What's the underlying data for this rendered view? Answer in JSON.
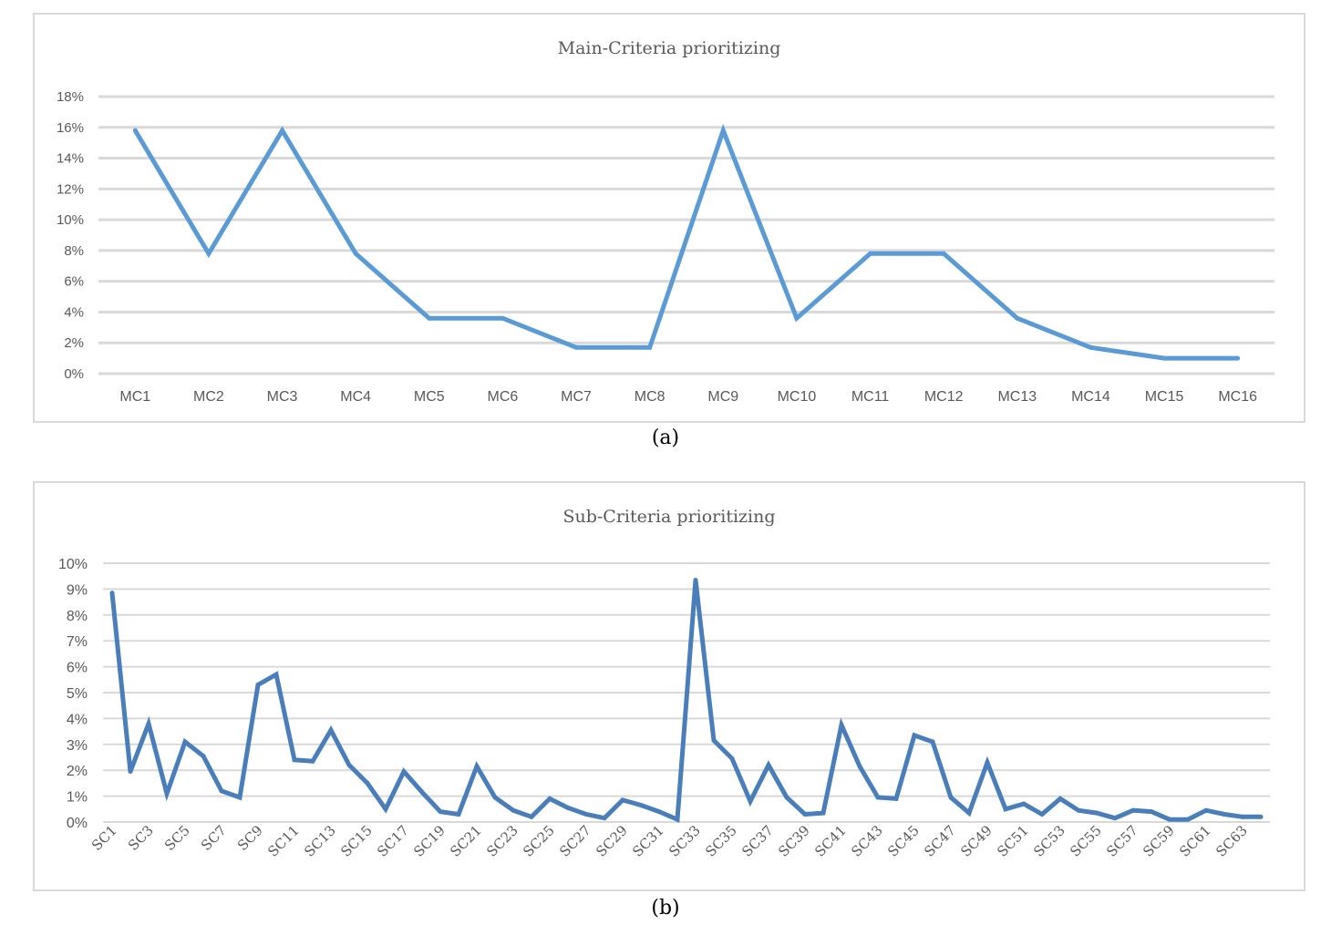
{
  "chart_data": [
    {
      "type": "line",
      "title": "Main-Criteria prioritizing",
      "panel_label": "(a)",
      "categories": [
        "MC1",
        "MC2",
        "MC3",
        "MC4",
        "MC5",
        "MC6",
        "MC7",
        "MC8",
        "MC9",
        "MC10",
        "MC11",
        "MC12",
        "MC13",
        "MC14",
        "MC15",
        "MC16"
      ],
      "values": [
        15.8,
        7.8,
        15.8,
        7.8,
        3.6,
        3.6,
        1.7,
        1.7,
        15.8,
        3.6,
        7.8,
        7.8,
        3.6,
        1.7,
        1.0,
        1.0
      ],
      "yticks": [
        "0%",
        "2%",
        "4%",
        "6%",
        "8%",
        "10%",
        "12%",
        "14%",
        "16%",
        "18%"
      ],
      "ylim": [
        0,
        18
      ],
      "grid": true,
      "legend": "none",
      "color": "#5b9bd5"
    },
    {
      "type": "line",
      "title": "Sub-Criteria prioritizing",
      "panel_label": "(b)",
      "x_tick_labels": [
        "SC1",
        "SC3",
        "SC5",
        "SC7",
        "SC9",
        "SC11",
        "SC13",
        "SC15",
        "SC17",
        "SC19",
        "SC21",
        "SC23",
        "SC25",
        "SC27",
        "SC29",
        "SC31",
        "SC33",
        "SC35",
        "SC37",
        "SC39",
        "SC41",
        "SC43",
        "SC45",
        "SC47",
        "SC49",
        "SC51",
        "SC53",
        "SC55",
        "SC57",
        "SC59",
        "SC61",
        "SC63"
      ],
      "values": [
        8.85,
        1.95,
        3.8,
        1.1,
        3.1,
        2.55,
        1.2,
        0.95,
        5.3,
        5.7,
        2.4,
        2.35,
        3.55,
        2.2,
        1.5,
        0.5,
        1.95,
        1.15,
        0.4,
        0.3,
        2.15,
        0.95,
        0.45,
        0.2,
        0.9,
        0.55,
        0.3,
        0.15,
        0.85,
        0.65,
        0.4,
        0.1,
        9.35,
        3.15,
        2.45,
        0.8,
        2.2,
        0.95,
        0.3,
        0.35,
        3.75,
        2.15,
        0.95,
        0.9,
        3.35,
        3.1,
        0.95,
        0.35,
        2.3,
        0.5,
        0.7,
        0.3,
        0.9,
        0.45,
        0.35,
        0.15,
        0.45,
        0.4,
        0.1,
        0.1,
        0.45,
        0.3,
        0.2,
        0.2
      ],
      "yticks": [
        "0%",
        "1%",
        "2%",
        "3%",
        "4%",
        "5%",
        "6%",
        "7%",
        "8%",
        "9%",
        "10%"
      ],
      "ylim": [
        0,
        10
      ],
      "grid": true,
      "legend": "none",
      "color": "#4a7ebb"
    }
  ]
}
